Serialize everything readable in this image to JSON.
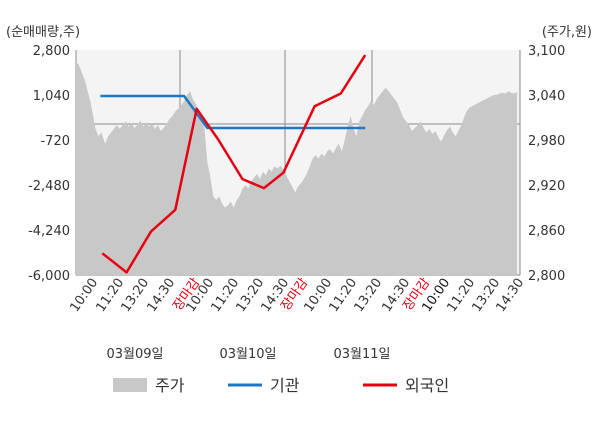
{
  "chart_data": {
    "type": "line",
    "units": {
      "left": "(순매매량,주)",
      "right": "(주가,원)"
    },
    "left_axis": {
      "ticks": [
        "2,800",
        "1,040",
        "-720",
        "-2,480",
        "-4,240",
        "-6,000"
      ],
      "ylim": [
        -6000,
        2800
      ]
    },
    "right_axis": {
      "ticks": [
        "3,100",
        "3,040",
        "2,980",
        "2,920",
        "2,860",
        "2,800"
      ],
      "ylim": [
        2800,
        3100
      ]
    },
    "x_labels": [
      "10:00",
      "11:20",
      "13:20",
      "14:30",
      "장마감",
      "10:00",
      "11:20",
      "13:20",
      "14:30",
      "장마감",
      "10:00",
      "11:20",
      "13:20",
      "14:30",
      "장마감",
      "10:00",
      "11:20",
      "13:20",
      "14:30"
    ],
    "x_label_styles": [
      "n",
      "n",
      "n",
      "n",
      "close",
      "n",
      "n",
      "n",
      "n",
      "close",
      "n",
      "n",
      "n",
      "n",
      "close",
      "bold",
      "n",
      "n",
      "n"
    ],
    "dates": [
      "03월09일",
      "03월10일",
      "03월11일"
    ],
    "legend": [
      {
        "label": "주가",
        "color": "#c8c8c8",
        "kind": "area"
      },
      {
        "label": "기관",
        "color": "#1f77c4",
        "kind": "line"
      },
      {
        "label": "외국인",
        "color": "#e60012",
        "kind": "line"
      }
    ],
    "price_series": {
      "name": "주가",
      "color": "#c8c8c8",
      "x": [
        0,
        0.3,
        0.6,
        0.9,
        1.2,
        1.5,
        1.8,
        2.0,
        2.3,
        2.6,
        3.0,
        3.3,
        3.6,
        3.9,
        4.2,
        4.5,
        4.8,
        5.1,
        5.4,
        5.7,
        6.0,
        6.3,
        6.6,
        6.9,
        7.2,
        7.5,
        7.8,
        8.1,
        8.4,
        8.7,
        9.0,
        9.3,
        9.6,
        9.9,
        10.2,
        10.5,
        10.8,
        11.1,
        11.4,
        11.7,
        12.0,
        12.3,
        12.6,
        12.9,
        13.2,
        13.5,
        13.8,
        14.1,
        14.4,
        14.7,
        15.0,
        15.3,
        15.6,
        15.9,
        16.2,
        16.5,
        16.8,
        17.1,
        17.4,
        17.7,
        18.0,
        18.3,
        18.6,
        18.9,
        19.2,
        19.5,
        19.8,
        20.1,
        20.4,
        20.7,
        21.0,
        21.3,
        21.6,
        21.9,
        22.2,
        22.5,
        22.8,
        23.1,
        23.4,
        23.7,
        24.0,
        24.3,
        24.6,
        24.9,
        25.2,
        25.5,
        25.8,
        26.1,
        26.4,
        26.7,
        27.0,
        27.3,
        27.6,
        27.9,
        28.2,
        28.5,
        28.8,
        29.1,
        29.4,
        29.7,
        30.0,
        30.3,
        30.6,
        30.9,
        31.2,
        31.5,
        31.8,
        32.1,
        32.4,
        32.7,
        33.0,
        33.3,
        33.6,
        33.9,
        34.2,
        34.5,
        34.8,
        35.1,
        35.4,
        35.7,
        36.0,
        36.3,
        36.6,
        36.9,
        37.2,
        37.5,
        37.8,
        38.1,
        38.4,
        38.7,
        39.0,
        39.3,
        39.6,
        39.9,
        40.2,
        40.5,
        40.8,
        41.1,
        41.4,
        41.7,
        42.0,
        42.3,
        42.6,
        42.9,
        43.2,
        43.5,
        43.8,
        44.1,
        44.4,
        44.7,
        45.0,
        45.3
      ],
      "values": [
        3085,
        3080,
        3070,
        3060,
        3045,
        3030,
        3010,
        2995,
        2985,
        2990,
        2975,
        2985,
        2990,
        2995,
        3000,
        2995,
        3000,
        3005,
        2998,
        3003,
        2996,
        3000,
        3006,
        2998,
        3004,
        2998,
        3002,
        2995,
        3000,
        2992,
        2996,
        3002,
        3008,
        3012,
        3018,
        3022,
        3026,
        3032,
        3040,
        3045,
        3035,
        3028,
        3020,
        3012,
        2995,
        2950,
        2930,
        2905,
        2900,
        2905,
        2895,
        2890,
        2893,
        2898,
        2890,
        2900,
        2905,
        2915,
        2920,
        2915,
        2925,
        2930,
        2935,
        2928,
        2938,
        2933,
        2942,
        2938,
        2945,
        2942,
        2946,
        2940,
        2933,
        2925,
        2918,
        2910,
        2918,
        2922,
        2928,
        2935,
        2945,
        2955,
        2960,
        2955,
        2962,
        2958,
        2965,
        2968,
        2962,
        2970,
        2975,
        2965,
        2980,
        2998,
        3012,
        2995,
        2985,
        3005,
        3012,
        3020,
        3025,
        3032,
        3027,
        3035,
        3040,
        3045,
        3050,
        3045,
        3040,
        3035,
        3030,
        3020,
        3010,
        3005,
        3000,
        2992,
        2996,
        3000,
        3005,
        2996,
        2990,
        2995,
        2988,
        2992,
        2984,
        2978,
        2986,
        2993,
        2998,
        2990,
        2985,
        2993,
        3000,
        3012,
        3020,
        3024,
        3026,
        3028,
        3030,
        3032,
        3034,
        3036,
        3038,
        3040,
        3040,
        3042,
        3043,
        3042,
        3045,
        3043,
        3042,
        3044
      ]
    },
    "series": [
      {
        "name": "기관",
        "color": "#1f77c4",
        "x": [
          2.5,
          11.1,
          13.5,
          29.7
        ],
        "values": [
          1000,
          1000,
          -250,
          -250
        ]
      },
      {
        "name": "외국인",
        "color": "#e60012",
        "x": [
          2.7,
          5.2,
          7.7,
          10.2,
          12.4,
          14.6,
          17.1,
          19.3,
          21.3,
          24.5,
          27.2,
          29.7
        ],
        "values": [
          -5150,
          -5900,
          -4300,
          -3450,
          500,
          -700,
          -2250,
          -2600,
          -2000,
          600,
          1100,
          2600
        ]
      }
    ]
  }
}
